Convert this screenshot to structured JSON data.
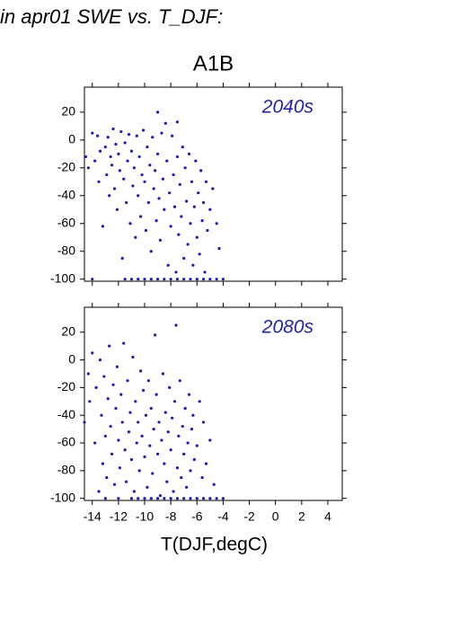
{
  "title": "in apr01 SWE vs. T_DJF:",
  "chart_data": [
    {
      "type": "scatter",
      "title": "A1B",
      "annotation": "2040s",
      "color": "#1c1cb4",
      "annotation_color": "#2323a8",
      "xlim": [
        -14.6,
        5.1
      ],
      "ylim": [
        -101.5,
        38
      ],
      "xticks": [
        -14,
        -12,
        -10,
        -8,
        -6,
        -4,
        -2,
        0,
        2,
        4
      ],
      "yticks": [
        -100,
        -80,
        -60,
        -40,
        -20,
        0,
        20
      ],
      "show_xtick_labels": false,
      "x": [
        -14.5,
        -14.3,
        -14.0,
        -13.8,
        -13.6,
        -13.5,
        -13.4,
        -13.2,
        -13.0,
        -12.9,
        -12.8,
        -12.7,
        -12.6,
        -12.5,
        -12.4,
        -12.3,
        -12.2,
        -12.1,
        -12.0,
        -11.9,
        -11.8,
        -11.7,
        -11.6,
        -11.5,
        -11.4,
        -11.3,
        -11.2,
        -11.1,
        -11.0,
        -10.9,
        -10.8,
        -10.7,
        -10.6,
        -10.5,
        -10.4,
        -10.3,
        -10.2,
        -10.1,
        -10.0,
        -9.9,
        -9.8,
        -9.7,
        -9.6,
        -9.5,
        -9.4,
        -9.3,
        -9.2,
        -9.1,
        -9.0,
        -9.0,
        -8.9,
        -8.8,
        -8.7,
        -8.6,
        -8.5,
        -8.4,
        -8.3,
        -8.2,
        -8.1,
        -8.0,
        -7.9,
        -7.8,
        -7.7,
        -7.6,
        -7.5,
        -7.5,
        -7.4,
        -7.3,
        -7.2,
        -7.1,
        -7.0,
        -6.9,
        -6.8,
        -6.7,
        -6.6,
        -6.5,
        -6.4,
        -6.3,
        -6.2,
        -6.1,
        -6.0,
        -5.9,
        -5.8,
        -5.7,
        -5.6,
        -5.5,
        -5.4,
        -5.3,
        -5.2,
        -5.0,
        -4.8,
        -4.5,
        -4.3,
        -14,
        -11.5,
        -11,
        -10.5,
        -10,
        -9.5,
        -9,
        -8.5,
        -8,
        -7.5,
        -7,
        -6.5,
        -6,
        -5.5,
        -5,
        -4.5,
        -4
      ],
      "values": [
        -12,
        -20,
        5,
        -15,
        3,
        -30,
        -8,
        -62,
        -5,
        -25,
        2,
        -40,
        -12,
        -18,
        8,
        -35,
        -3,
        -50,
        -10,
        -22,
        6,
        -85,
        -28,
        -2,
        -45,
        -15,
        4,
        -60,
        -8,
        -33,
        -20,
        -70,
        3,
        -40,
        -12,
        -55,
        -25,
        7,
        -30,
        -65,
        -5,
        -45,
        -18,
        -80,
        2,
        -35,
        -22,
        -58,
        20,
        -10,
        -42,
        -72,
        5,
        -28,
        -50,
        12,
        -15,
        -90,
        -38,
        -62,
        3,
        -25,
        -48,
        -95,
        13,
        -12,
        -68,
        -32,
        -55,
        -5,
        -85,
        -20,
        -44,
        -75,
        -10,
        -60,
        -30,
        -90,
        -48,
        -15,
        -70,
        -38,
        -82,
        -22,
        -58,
        -45,
        -95,
        -30,
        -65,
        -50,
        -35,
        -60,
        -78,
        -100,
        -100,
        -100,
        -100,
        -100,
        -100,
        -100,
        -100,
        -100,
        -100,
        -100,
        -100,
        -100,
        -100,
        -100,
        -100,
        -100
      ]
    },
    {
      "type": "scatter",
      "annotation": "2080s",
      "xlabel": "T(DJF,degC)",
      "color": "#1c1cb4",
      "annotation_color": "#2323a8",
      "xlim": [
        -14.6,
        5.1
      ],
      "ylim": [
        -101.5,
        38
      ],
      "xticks": [
        -14,
        -12,
        -10,
        -8,
        -6,
        -4,
        -2,
        0,
        2,
        4
      ],
      "yticks": [
        -100,
        -80,
        -60,
        -40,
        -20,
        0,
        20
      ],
      "show_xtick_labels": true,
      "x": [
        -14.6,
        -14.3,
        -14.2,
        -14.0,
        -13.8,
        -13.7,
        -13.5,
        -13.4,
        -13.3,
        -13.2,
        -13.1,
        -13.0,
        -12.9,
        -12.8,
        -12.7,
        -12.6,
        -12.5,
        -12.4,
        -12.3,
        -12.2,
        -12.1,
        -12.0,
        -11.9,
        -11.8,
        -11.7,
        -11.6,
        -11.5,
        -11.4,
        -11.3,
        -11.2,
        -11.1,
        -11.0,
        -10.9,
        -10.8,
        -10.7,
        -10.6,
        -10.5,
        -10.4,
        -10.3,
        -10.2,
        -10.1,
        -10.0,
        -9.9,
        -9.8,
        -9.7,
        -9.6,
        -9.5,
        -9.4,
        -9.3,
        -9.2,
        -9.1,
        -9.0,
        -8.9,
        -8.8,
        -8.7,
        -8.6,
        -8.5,
        -8.4,
        -8.3,
        -8.2,
        -8.1,
        -8.0,
        -7.9,
        -7.8,
        -7.7,
        -7.6,
        -7.5,
        -7.4,
        -7.3,
        -7.2,
        -7.1,
        -7.0,
        -6.9,
        -6.8,
        -6.7,
        -6.6,
        -6.5,
        -6.4,
        -6.3,
        -6.2,
        -6.0,
        -5.8,
        -5.6,
        -5.5,
        -5.3,
        -5.0,
        -4.7,
        -13,
        -12,
        -11,
        -10.5,
        -10,
        -9.5,
        -9,
        -8.5,
        -8,
        -7.5,
        -7,
        -6.5,
        -6,
        -5.5,
        -5,
        -4.5,
        -4
      ],
      "values": [
        -45,
        -10,
        -30,
        5,
        -60,
        -20,
        -95,
        0,
        -40,
        -75,
        -12,
        -55,
        -85,
        -28,
        10,
        -48,
        -68,
        -18,
        -90,
        -35,
        -5,
        -58,
        -78,
        -25,
        -45,
        12,
        -65,
        -88,
        -15,
        -52,
        -38,
        -72,
        2,
        -95,
        -30,
        -60,
        -45,
        -80,
        -8,
        -55,
        -22,
        -70,
        -40,
        -92,
        -15,
        -62,
        -35,
        -82,
        -50,
        18,
        -25,
        -68,
        -45,
        -98,
        -58,
        -10,
        -75,
        -38,
        -88,
        -52,
        -20,
        -65,
        -42,
        -95,
        -30,
        25,
        -78,
        -55,
        -15,
        -85,
        -48,
        -68,
        -35,
        -92,
        -60,
        -25,
        -80,
        -50,
        -40,
        -72,
        -62,
        -30,
        -85,
        -45,
        -75,
        -58,
        -90,
        -100,
        -100,
        -100,
        -100,
        -100,
        -100,
        -100,
        -100,
        -100,
        -100,
        -100,
        -100,
        -100,
        -100,
        -100,
        -100,
        -100
      ]
    }
  ]
}
